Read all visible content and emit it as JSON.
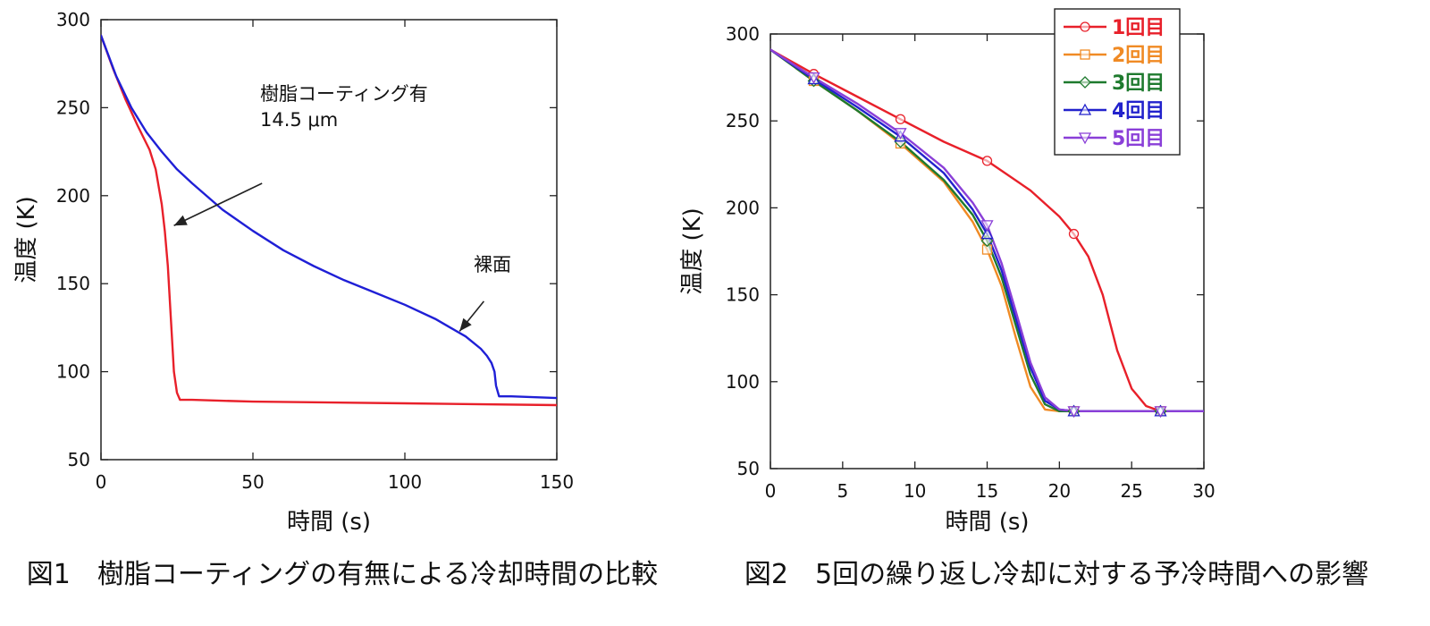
{
  "chart_data": [
    {
      "type": "line",
      "caption": "図1　樹脂コーティングの有無による冷却時間の比較",
      "xlabel": "時間 (s)",
      "ylabel": "温度 (K)",
      "xlim": [
        0,
        150
      ],
      "ylim": [
        50,
        300
      ],
      "xticks": [
        0,
        50,
        100,
        150
      ],
      "yticks": [
        50,
        100,
        150,
        200,
        250,
        300
      ],
      "grid": false,
      "series": [
        {
          "color": "#e8202a",
          "x": [
            0,
            4,
            8,
            12,
            16,
            18,
            20,
            21,
            22,
            23,
            24,
            25,
            26,
            27,
            30,
            50,
            100,
            150
          ],
          "y": [
            291,
            272,
            255,
            240,
            226,
            215,
            195,
            180,
            160,
            130,
            100,
            88,
            84,
            84,
            84,
            83,
            82,
            81
          ]
        },
        {
          "color": "#1f1fd6",
          "x": [
            0,
            5,
            10,
            15,
            20,
            25,
            30,
            40,
            50,
            60,
            70,
            80,
            90,
            100,
            110,
            115,
            120,
            125,
            127,
            128.5,
            129.5,
            130,
            131,
            135,
            150
          ],
          "y": [
            291,
            268,
            250,
            236,
            225,
            215,
            207,
            192,
            180,
            169,
            160,
            152,
            145,
            138,
            130,
            125,
            120,
            113,
            109,
            105,
            100,
            92,
            86,
            86,
            85
          ]
        }
      ],
      "annotations": [
        {
          "line1": "樹脂コーティング有",
          "line2": "14.5 μm",
          "point": [
            24,
            183
          ],
          "text_pos": [
            53,
            207
          ]
        },
        {
          "text": "裸面",
          "point": [
            118,
            123
          ],
          "text_pos": [
            126,
            140
          ]
        }
      ]
    },
    {
      "type": "line",
      "caption": "図2　5回の繰り返し冷却に対する予冷時間への影響",
      "xlabel": "時間 (s)",
      "ylabel": "温度 (K)",
      "xlim": [
        0,
        30
      ],
      "ylim": [
        50,
        300
      ],
      "xticks": [
        0,
        5,
        10,
        15,
        20,
        25,
        30
      ],
      "yticks": [
        50,
        100,
        150,
        200,
        250,
        300
      ],
      "grid": false,
      "legend_position": "top-right",
      "series": [
        {
          "name": "1回目",
          "color": "#e8202a",
          "marker": "circle",
          "x": [
            0,
            3,
            6,
            9,
            12,
            15,
            18,
            20,
            21,
            22,
            23,
            24,
            25,
            26,
            27,
            30
          ],
          "y": [
            291,
            277,
            264,
            251,
            238,
            227,
            210,
            195,
            185,
            172,
            150,
            118,
            96,
            86,
            83,
            83
          ],
          "marker_x": [
            3,
            9,
            15,
            21,
            27
          ],
          "marker_y": [
            277,
            251,
            227,
            185,
            83
          ]
        },
        {
          "name": "2回目",
          "color": "#f08a24",
          "marker": "square",
          "x": [
            0,
            3,
            6,
            9,
            12,
            14,
            15,
            16,
            17,
            18,
            19,
            20,
            21,
            27,
            30
          ],
          "y": [
            291,
            273,
            256,
            237,
            215,
            192,
            176,
            155,
            125,
            97,
            84,
            83,
            83,
            83,
            83
          ],
          "marker_x": [
            3,
            9,
            15,
            21,
            27
          ],
          "marker_y": [
            273,
            237,
            176,
            83,
            83
          ]
        },
        {
          "name": "3回目",
          "color": "#1e7a2e",
          "marker": "diamond",
          "x": [
            0,
            3,
            6,
            9,
            12,
            14,
            15,
            16,
            17,
            18,
            19,
            20,
            21,
            27,
            30
          ],
          "y": [
            291,
            273,
            256,
            238,
            216,
            196,
            181,
            160,
            132,
            104,
            87,
            83,
            83,
            83,
            83
          ],
          "marker_x": [
            3,
            9,
            15,
            21,
            27
          ],
          "marker_y": [
            273,
            238,
            181,
            83,
            83
          ]
        },
        {
          "name": "4回目",
          "color": "#2222cc",
          "marker": "triangle-up",
          "x": [
            0,
            3,
            6,
            9,
            12,
            14,
            15,
            16,
            17,
            18,
            19,
            20,
            21,
            27,
            30
          ],
          "y": [
            291,
            274,
            258,
            241,
            220,
            199,
            185,
            164,
            136,
            108,
            89,
            84,
            83,
            83,
            83
          ],
          "marker_x": [
            3,
            9,
            15,
            21,
            27
          ],
          "marker_y": [
            274,
            241,
            185,
            83,
            83
          ]
        },
        {
          "name": "5回目",
          "color": "#8a3fd8",
          "marker": "triangle-down",
          "x": [
            0,
            3,
            6,
            9,
            12,
            14,
            15,
            16,
            17,
            18,
            19,
            20,
            21,
            27,
            30
          ],
          "y": [
            291,
            275,
            260,
            243,
            223,
            203,
            190,
            168,
            140,
            111,
            91,
            84,
            83,
            83,
            83
          ],
          "marker_x": [
            3,
            9,
            15,
            21,
            27
          ],
          "marker_y": [
            275,
            243,
            190,
            83,
            83
          ]
        }
      ]
    }
  ]
}
